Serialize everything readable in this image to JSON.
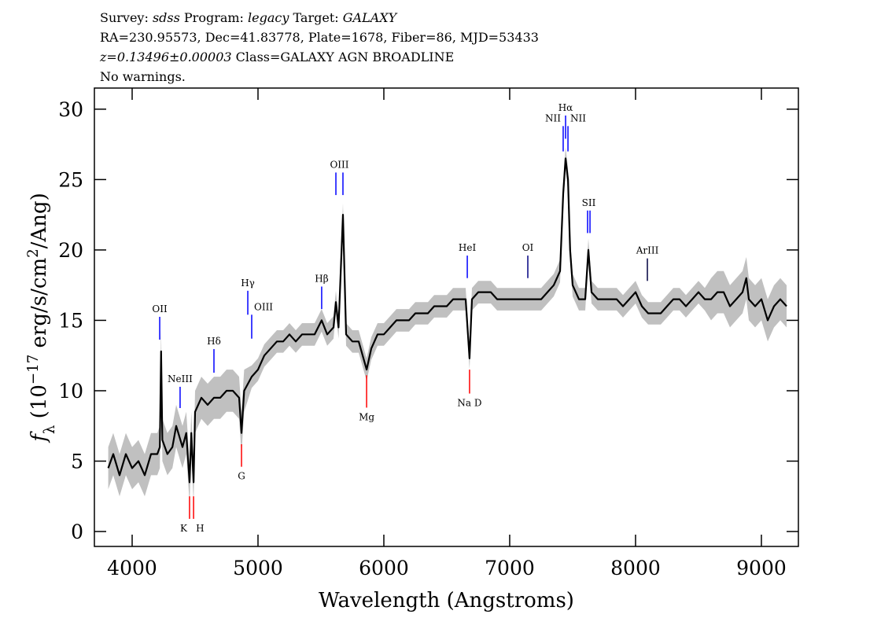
{
  "chart_data": {
    "type": "line",
    "header": [
      [
        {
          "text": "Survey: ",
          "style": "normal"
        },
        {
          "text": "sdss",
          "style": "italic"
        },
        {
          "text": " Program: ",
          "style": "normal"
        },
        {
          "text": "legacy",
          "style": "italic"
        },
        {
          "text": " Target: ",
          "style": "normal"
        },
        {
          "text": "GALAXY",
          "style": "italic"
        }
      ],
      [
        {
          "text": "RA=230.95573, Dec=41.83778, Plate=1678, Fiber=86, MJD=53433",
          "style": "normal"
        }
      ],
      [
        {
          "text": "z=0.13496±0.00003",
          "style": "italic"
        },
        {
          "text": " Class=GALAXY AGN BROADLINE",
          "style": "normal"
        }
      ],
      [
        {
          "text": "No warnings.",
          "style": "normal"
        }
      ]
    ],
    "x_label": "Wavelength (Angstroms)",
    "y_label": [
      {
        "text": "f",
        "style": "italic"
      },
      {
        "text": "λ",
        "style": "sub"
      },
      {
        "text": " (10",
        "style": "normal"
      },
      {
        "text": "−17",
        "style": "sup"
      },
      {
        "text": " erg/s/cm",
        "style": "normal"
      },
      {
        "text": "2",
        "style": "sup"
      },
      {
        "text": "/Ang)",
        "style": "normal"
      }
    ],
    "xlim": [
      3700,
      9294
    ],
    "ylim": [
      -1.06,
      31.5
    ],
    "xticks": [
      4000,
      5000,
      6000,
      7000,
      8000,
      9000
    ],
    "yticks": [
      0,
      5,
      10,
      15,
      20,
      25,
      30
    ],
    "color": "#000000",
    "error_color": "#c0c0c0",
    "x": [
      3810,
      3850,
      3900,
      3950,
      4000,
      4050,
      4100,
      4150,
      4200,
      4220,
      4230,
      4240,
      4280,
      4320,
      4350,
      4400,
      4430,
      4456,
      4470,
      4488,
      4500,
      4550,
      4600,
      4650,
      4700,
      4750,
      4800,
      4850,
      4869,
      4890,
      4950,
      5000,
      5050,
      5100,
      5150,
      5200,
      5250,
      5300,
      5350,
      5400,
      5450,
      5506,
      5550,
      5600,
      5619,
      5640,
      5675,
      5700,
      5750,
      5800,
      5863,
      5900,
      5950,
      6000,
      6050,
      6100,
      6150,
      6200,
      6250,
      6300,
      6350,
      6400,
      6450,
      6500,
      6550,
      6600,
      6650,
      6681,
      6700,
      6750,
      6800,
      6850,
      6900,
      6950,
      7000,
      7050,
      7100,
      7150,
      7200,
      7250,
      7300,
      7350,
      7400,
      7425,
      7444,
      7463,
      7480,
      7500,
      7550,
      7600,
      7625,
      7650,
      7700,
      7750,
      7800,
      7850,
      7900,
      7950,
      8000,
      8050,
      8100,
      8150,
      8200,
      8250,
      8300,
      8350,
      8400,
      8450,
      8500,
      8550,
      8600,
      8650,
      8700,
      8750,
      8800,
      8850,
      8880,
      8900,
      8950,
      9000,
      9050,
      9100,
      9150,
      9200
    ],
    "values": [
      4.5,
      5.5,
      4.0,
      5.5,
      4.5,
      5.0,
      4.0,
      5.5,
      5.5,
      6.0,
      12.8,
      6.5,
      5.5,
      6.0,
      7.5,
      6.0,
      7.0,
      3.5,
      7.0,
      3.5,
      8.5,
      9.5,
      9.0,
      9.5,
      9.5,
      10.0,
      10.0,
      9.5,
      7.0,
      10.0,
      11.0,
      11.5,
      12.5,
      13.0,
      13.5,
      13.5,
      14.0,
      13.5,
      14.0,
      14.0,
      14.0,
      15.0,
      14.0,
      14.5,
      16.3,
      14.5,
      22.5,
      14.0,
      13.5,
      13.5,
      11.5,
      13.0,
      14.0,
      14.0,
      14.5,
      15.0,
      15.0,
      15.0,
      15.5,
      15.5,
      15.5,
      16.0,
      16.0,
      16.0,
      16.5,
      16.5,
      16.5,
      12.3,
      16.5,
      17.0,
      17.0,
      17.0,
      16.5,
      16.5,
      16.5,
      16.5,
      16.5,
      16.5,
      16.5,
      16.5,
      17.0,
      17.5,
      18.5,
      24.0,
      26.5,
      25.0,
      20.0,
      17.5,
      16.5,
      16.5,
      20.0,
      17.0,
      16.5,
      16.5,
      16.5,
      16.5,
      16.0,
      16.5,
      17.0,
      16.0,
      15.5,
      15.5,
      15.5,
      16.0,
      16.5,
      16.5,
      16.0,
      16.5,
      17.0,
      16.5,
      16.5,
      17.0,
      17.0,
      16.0,
      16.5,
      17.0,
      18.0,
      16.5,
      16.0,
      16.5,
      15.0,
      16.0,
      16.5,
      16.0
    ],
    "error": [
      1.5,
      1.5,
      1.5,
      1.5,
      1.5,
      1.5,
      1.5,
      1.5,
      1.5,
      1.5,
      1.5,
      1.5,
      1.5,
      1.5,
      1.5,
      1.5,
      1.5,
      1.5,
      1.5,
      1.5,
      1.5,
      1.5,
      1.5,
      1.5,
      1.5,
      1.5,
      1.5,
      1.5,
      1.5,
      1.5,
      0.8,
      0.8,
      0.8,
      0.8,
      0.8,
      0.8,
      0.8,
      0.8,
      0.8,
      0.8,
      0.8,
      0.8,
      0.8,
      0.8,
      0.8,
      0.8,
      0.8,
      0.8,
      0.8,
      0.8,
      0.8,
      0.8,
      0.8,
      0.8,
      0.8,
      0.8,
      0.8,
      0.8,
      0.8,
      0.8,
      0.8,
      0.8,
      0.8,
      0.8,
      0.8,
      0.8,
      0.8,
      0.8,
      0.8,
      0.8,
      0.8,
      0.8,
      0.8,
      0.8,
      0.8,
      0.8,
      0.8,
      0.8,
      0.8,
      0.8,
      0.8,
      0.8,
      0.8,
      0.8,
      0.8,
      0.8,
      0.8,
      0.8,
      0.8,
      0.8,
      0.8,
      0.8,
      0.8,
      0.8,
      0.8,
      0.8,
      0.8,
      0.8,
      0.8,
      0.8,
      0.8,
      0.8,
      0.8,
      0.8,
      0.8,
      0.8,
      0.8,
      0.8,
      0.8,
      0.8,
      1.5,
      1.5,
      1.5,
      1.5,
      1.5,
      1.5,
      1.5,
      1.5,
      1.5,
      1.5,
      1.5,
      1.5,
      1.5,
      1.5
    ],
    "annotations": [
      {
        "label": "OII",
        "x": [
          4219
        ],
        "ymin": 13.63,
        "ymax": 15.25,
        "side": "top",
        "anchor": "middle",
        "color": "#0000ff"
      },
      {
        "label": "NeIII",
        "x": [
          4381
        ],
        "ymin": 8.77,
        "ymax": 10.28,
        "side": "top",
        "anchor": "middle",
        "color": "#0000ff"
      },
      {
        "label": "Hδ",
        "x": [
          4650
        ],
        "ymin": 11.28,
        "ymax": 12.96,
        "side": "top",
        "anchor": "middle",
        "color": "#0000ff"
      },
      {
        "label": "Hγ",
        "x": [
          4919
        ],
        "ymin": 15.4,
        "ymax": 17.1,
        "side": "top",
        "anchor": "middle",
        "color": "#0000ff"
      },
      {
        "label": "OIII",
        "x": [
          4950
        ],
        "ymin": 13.7,
        "ymax": 15.4,
        "side": "top",
        "anchor": "start",
        "color": "#0000ff"
      },
      {
        "label": "Hβ",
        "x": [
          5506
        ],
        "ymin": 15.8,
        "ymax": 17.4,
        "side": "top",
        "anchor": "middle",
        "color": "#0000ff"
      },
      {
        "label": "OIII",
        "x": [
          5619,
          5675
        ],
        "ymin": 23.9,
        "ymax": 25.5,
        "side": "top",
        "anchor": "middle",
        "color": "#0000ff"
      },
      {
        "label": "HeI",
        "x": [
          6663
        ],
        "ymin": 18.0,
        "ymax": 19.6,
        "side": "top",
        "anchor": "middle",
        "color": "#0000ff"
      },
      {
        "label": "OI",
        "x": [
          7144
        ],
        "ymin": 18.0,
        "ymax": 19.6,
        "side": "top",
        "anchor": "middle",
        "color": "#000080"
      },
      {
        "label": "NII",
        "x": [
          7425
        ],
        "ymin": 27.0,
        "ymax": 28.8,
        "side": "top",
        "anchor": "end",
        "color": "#0000ff"
      },
      {
        "label": "Hα",
        "x": [
          7444
        ],
        "ymin": 27.9,
        "ymax": 29.55,
        "side": "top",
        "anchor": "middle",
        "color": "#0000ff"
      },
      {
        "label": "NII",
        "x": [
          7463
        ],
        "ymin": 27.0,
        "ymax": 28.8,
        "side": "top",
        "anchor": "start",
        "color": "#0000ff"
      },
      {
        "label": "SII",
        "x": [
          7619,
          7638
        ],
        "ymin": 21.2,
        "ymax": 22.8,
        "side": "top",
        "anchor": "middle",
        "color": "#0000ff"
      },
      {
        "label": "ArIII",
        "x": [
          8094
        ],
        "ymin": 17.8,
        "ymax": 19.4,
        "side": "top",
        "anchor": "middle",
        "color": "#000040"
      },
      {
        "label": "K",
        "x": [
          4456
        ],
        "ymin": 0.9,
        "ymax": 2.5,
        "side": "bottom",
        "anchor": "end",
        "color": "#ff0000"
      },
      {
        "label": "H",
        "x": [
          4488
        ],
        "ymin": 0.9,
        "ymax": 2.5,
        "side": "bottom",
        "anchor": "start",
        "color": "#ff0000"
      },
      {
        "label": "G",
        "x": [
          4869
        ],
        "ymin": 4.6,
        "ymax": 6.2,
        "side": "bottom",
        "anchor": "middle",
        "color": "#ff0000"
      },
      {
        "label": "Mg",
        "x": [
          5863
        ],
        "ymin": 8.8,
        "ymax": 11.1,
        "side": "bottom",
        "anchor": "middle",
        "color": "#ff0000"
      },
      {
        "label": "Na D",
        "x": [
          6681
        ],
        "ymin": 9.8,
        "ymax": 11.5,
        "side": "bottom",
        "anchor": "middle",
        "color": "#ff0000"
      }
    ]
  }
}
